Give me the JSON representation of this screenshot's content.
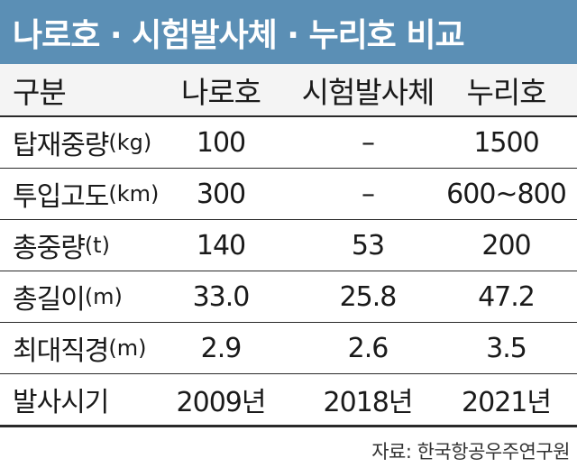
{
  "title": "나로호 · 시험발사체 · 누리호 비교",
  "header": {
    "label": "구분",
    "naro": "나로호",
    "test": "시험발사체",
    "nuri": "누리호"
  },
  "rows": [
    {
      "label": "탑재중량",
      "unit": "(kg)",
      "naro": "100",
      "test": "–",
      "nuri": "1500"
    },
    {
      "label": "투입고도",
      "unit": "(km)",
      "naro": "300",
      "test": "–",
      "nuri": "600~800"
    },
    {
      "label": "총중량",
      "unit": "(t)",
      "naro": "140",
      "test": "53",
      "nuri": "200"
    },
    {
      "label": "총길이",
      "unit": "(m)",
      "naro": "33.0",
      "test": "25.8",
      "nuri": "47.2"
    },
    {
      "label": "최대직경",
      "unit": "(m)",
      "naro": "2.9",
      "test": "2.6",
      "nuri": "3.5"
    },
    {
      "label": "발사시기",
      "unit": "",
      "naro": "2009년",
      "test": "2018년",
      "nuri": "2021년"
    }
  ],
  "source": "자료: 한국항공우주연구원",
  "colors": {
    "title_background": "#5b8fb5",
    "title_text": "#ffffff"
  }
}
